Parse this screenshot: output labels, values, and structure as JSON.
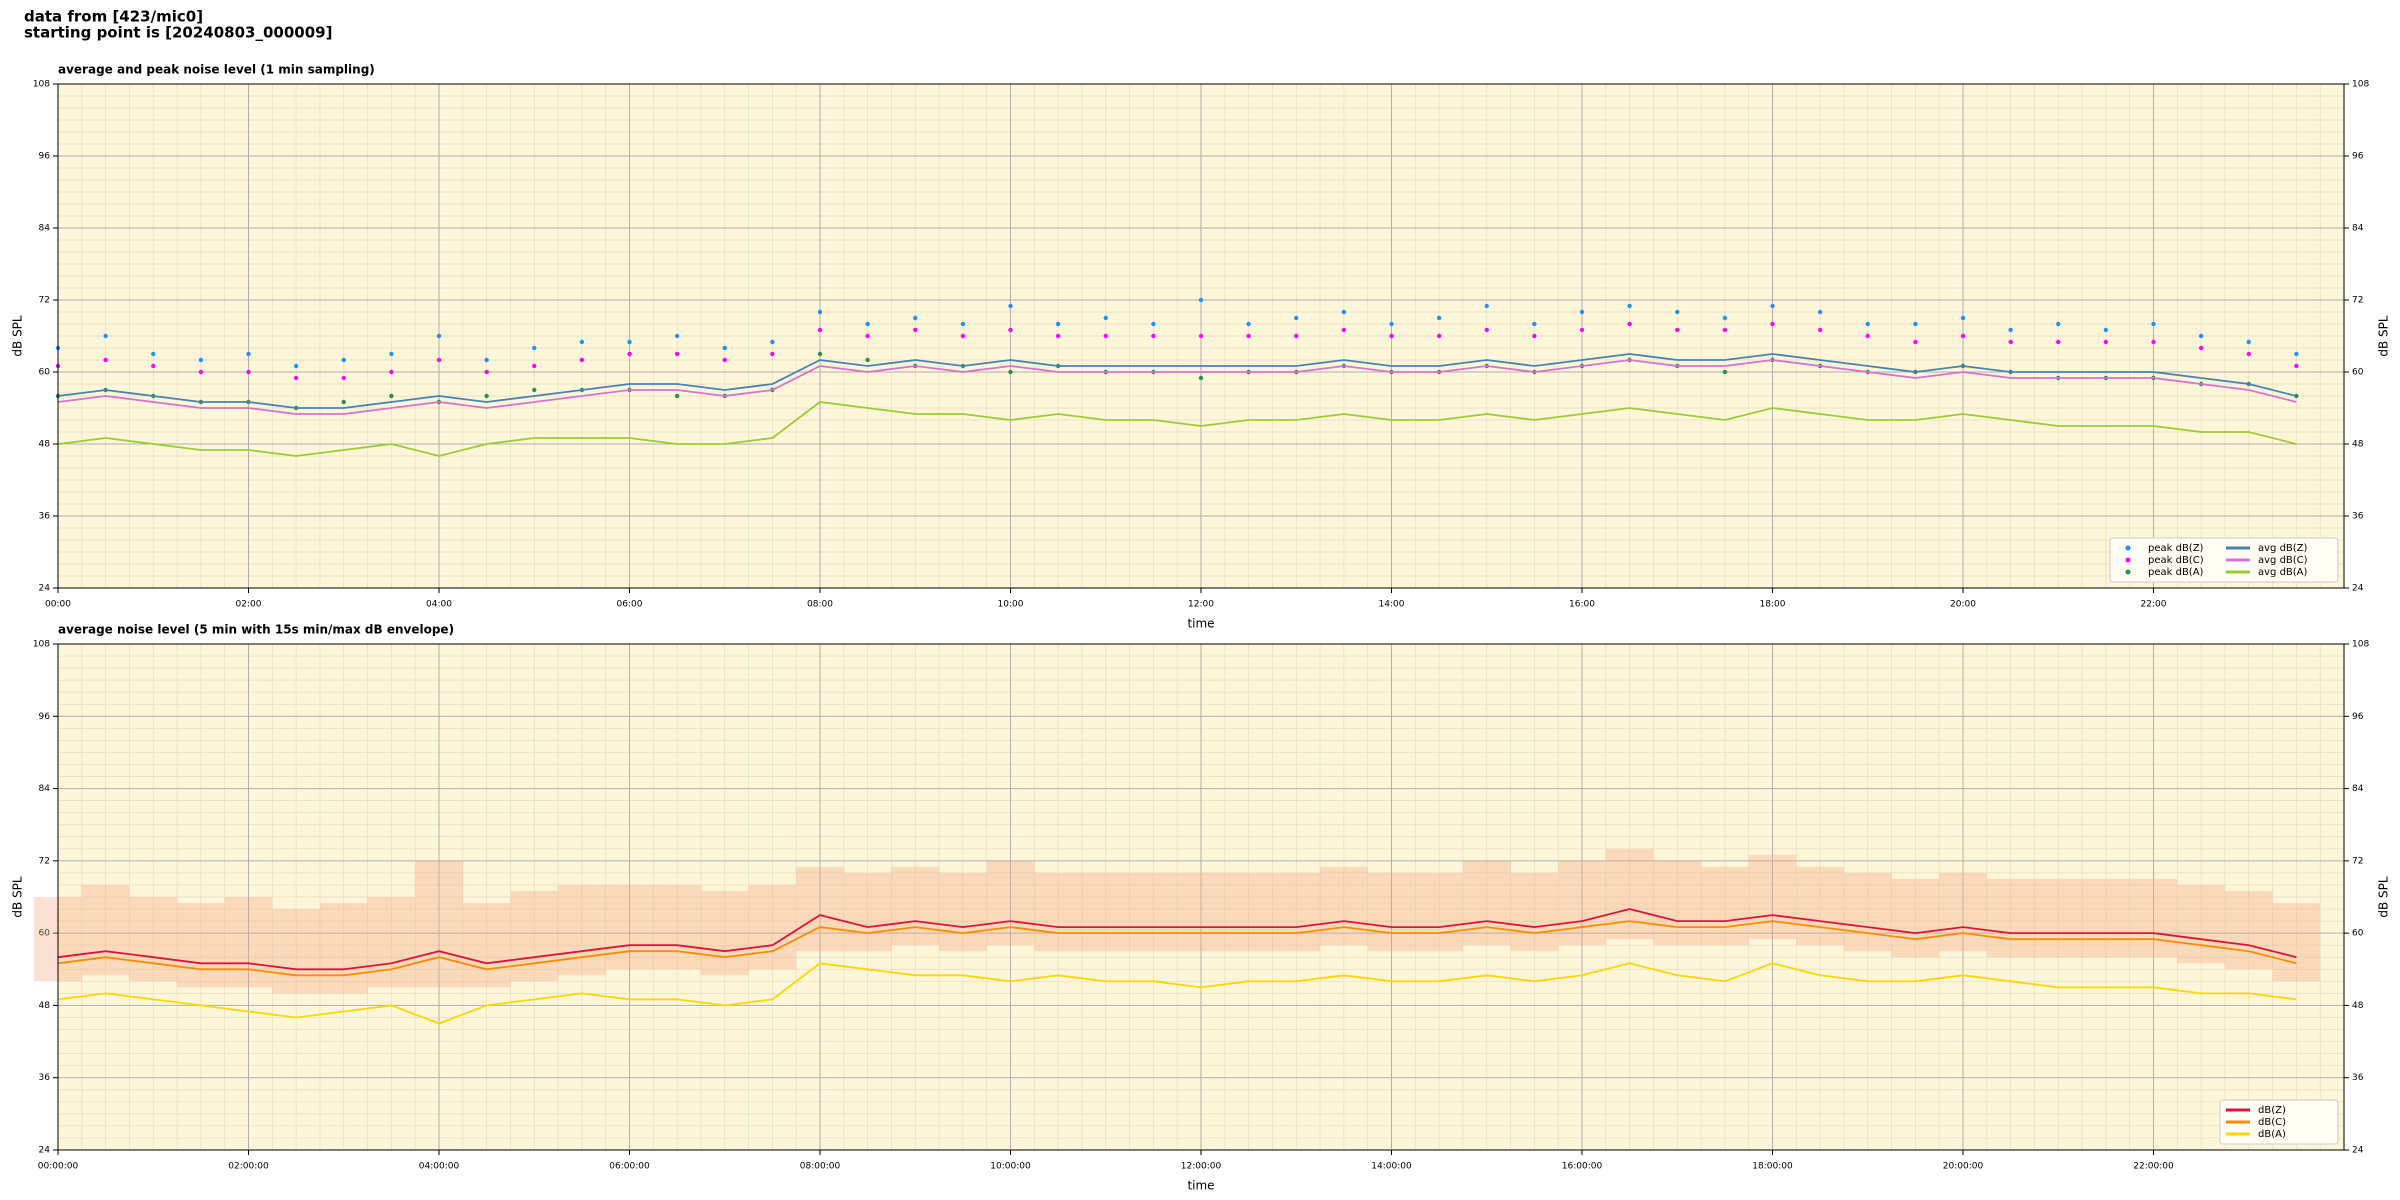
{
  "header": [
    "data from [423/mic0]",
    "starting point is [20240803_000009]"
  ],
  "chart_data": [
    {
      "type": "line",
      "title": "average and peak noise level (1 min sampling)",
      "xlabel": "time",
      "ylabel": "dB SPL",
      "xlim": [
        0,
        24
      ],
      "ylim": [
        24,
        108
      ],
      "yticks": [
        24,
        36,
        48,
        60,
        72,
        84,
        96,
        108
      ],
      "xticks": [
        {
          "value": 0,
          "label": "00:00"
        },
        {
          "value": 2,
          "label": "02:00"
        },
        {
          "value": 4,
          "label": "04:00"
        },
        {
          "value": 6,
          "label": "06:00"
        },
        {
          "value": 8,
          "label": "08:00"
        },
        {
          "value": 10,
          "label": "10:00"
        },
        {
          "value": 12,
          "label": "12:00"
        },
        {
          "value": 14,
          "label": "14:00"
        },
        {
          "value": 16,
          "label": "16:00"
        },
        {
          "value": 18,
          "label": "18:00"
        },
        {
          "value": 20,
          "label": "20:00"
        },
        {
          "value": 22,
          "label": "22:00"
        }
      ],
      "grid": true,
      "legend": "lower right",
      "legend_columns": 2,
      "x": [
        0,
        0.5,
        1,
        1.5,
        2,
        2.5,
        3,
        3.5,
        4,
        4.5,
        5,
        5.5,
        6,
        6.5,
        7,
        7.5,
        8,
        8.5,
        9,
        9.5,
        10,
        10.5,
        11,
        11.5,
        12,
        12.5,
        13,
        13.5,
        14,
        14.5,
        15,
        15.5,
        16,
        16.5,
        17,
        17.5,
        18,
        18.5,
        19,
        19.5,
        20,
        20.5,
        21,
        21.5,
        22,
        22.5,
        23,
        23.5
      ],
      "series": [
        {
          "name": "peak dB(Z)",
          "color": "#1e90ff",
          "mode": "markers",
          "values": [
            64,
            66,
            63,
            62,
            63,
            61,
            62,
            63,
            66,
            62,
            64,
            65,
            65,
            66,
            64,
            65,
            70,
            68,
            69,
            68,
            71,
            68,
            69,
            68,
            72,
            68,
            69,
            70,
            68,
            69,
            71,
            68,
            70,
            71,
            70,
            69,
            71,
            70,
            68,
            68,
            69,
            67,
            68,
            67,
            68,
            66,
            65,
            63
          ]
        },
        {
          "name": "peak dB(C)",
          "color": "#ff00ff",
          "mode": "markers",
          "values": [
            61,
            62,
            61,
            60,
            60,
            59,
            59,
            60,
            62,
            60,
            61,
            62,
            63,
            63,
            62,
            63,
            67,
            66,
            67,
            66,
            67,
            66,
            66,
            66,
            66,
            66,
            66,
            67,
            66,
            66,
            67,
            66,
            67,
            68,
            67,
            67,
            68,
            67,
            66,
            65,
            66,
            65,
            65,
            65,
            65,
            64,
            63,
            61
          ]
        },
        {
          "name": "peak dB(A)",
          "color": "#2e8b57",
          "mode": "markers",
          "values": [
            56,
            57,
            56,
            55,
            55,
            54,
            55,
            56,
            55,
            56,
            57,
            57,
            57,
            56,
            56,
            57,
            63,
            62,
            61,
            61,
            60,
            61,
            60,
            60,
            59,
            60,
            60,
            61,
            60,
            60,
            61,
            60,
            61,
            62,
            61,
            60,
            62,
            61,
            60,
            60,
            61,
            60,
            59,
            59,
            59,
            58,
            58,
            56
          ]
        },
        {
          "name": "avg dB(Z)",
          "color": "#4682b4",
          "mode": "line",
          "values": [
            56,
            57,
            56,
            55,
            55,
            54,
            54,
            55,
            56,
            55,
            56,
            57,
            58,
            58,
            57,
            58,
            62,
            61,
            62,
            61,
            62,
            61,
            61,
            61,
            61,
            61,
            61,
            62,
            61,
            61,
            62,
            61,
            62,
            63,
            62,
            62,
            63,
            62,
            61,
            60,
            61,
            60,
            60,
            60,
            60,
            59,
            58,
            56
          ]
        },
        {
          "name": "avg dB(C)",
          "color": "#da70d6",
          "mode": "line",
          "values": [
            55,
            56,
            55,
            54,
            54,
            53,
            53,
            54,
            55,
            54,
            55,
            56,
            57,
            57,
            56,
            57,
            61,
            60,
            61,
            60,
            61,
            60,
            60,
            60,
            60,
            60,
            60,
            61,
            60,
            60,
            61,
            60,
            61,
            62,
            61,
            61,
            62,
            61,
            60,
            59,
            60,
            59,
            59,
            59,
            59,
            58,
            57,
            55
          ]
        },
        {
          "name": "avg dB(A)",
          "color": "#9acd32",
          "mode": "line",
          "values": [
            48,
            49,
            48,
            47,
            47,
            46,
            47,
            48,
            46,
            48,
            49,
            49,
            49,
            48,
            48,
            49,
            55,
            54,
            53,
            53,
            52,
            53,
            52,
            52,
            51,
            52,
            52,
            53,
            52,
            52,
            53,
            52,
            53,
            54,
            53,
            52,
            54,
            53,
            52,
            52,
            53,
            52,
            51,
            51,
            51,
            50,
            50,
            48
          ]
        }
      ]
    },
    {
      "type": "line",
      "title": "average noise level (5 min with 15s min/max dB envelope)",
      "xlabel": "time",
      "ylabel": "dB SPL",
      "xlim": [
        0,
        24
      ],
      "ylim": [
        24,
        108
      ],
      "yticks": [
        24,
        36,
        48,
        60,
        72,
        84,
        96,
        108
      ],
      "xticks": [
        {
          "value": 0,
          "label": "00:00:00"
        },
        {
          "value": 2,
          "label": "02:00:00"
        },
        {
          "value": 4,
          "label": "04:00:00"
        },
        {
          "value": 6,
          "label": "06:00:00"
        },
        {
          "value": 8,
          "label": "08:00:00"
        },
        {
          "value": 10,
          "label": "10:00:00"
        },
        {
          "value": 12,
          "label": "12:00:00"
        },
        {
          "value": 14,
          "label": "14:00:00"
        },
        {
          "value": 16,
          "label": "16:00:00"
        },
        {
          "value": 18,
          "label": "18:00:00"
        },
        {
          "value": 20,
          "label": "20:00:00"
        },
        {
          "value": 22,
          "label": "22:00:00"
        }
      ],
      "grid": true,
      "legend": "lower right",
      "legend_columns": 1,
      "x": [
        0,
        0.5,
        1,
        1.5,
        2,
        2.5,
        3,
        3.5,
        4,
        4.5,
        5,
        5.5,
        6,
        6.5,
        7,
        7.5,
        8,
        8.5,
        9,
        9.5,
        10,
        10.5,
        11,
        11.5,
        12,
        12.5,
        13,
        13.5,
        14,
        14.5,
        15,
        15.5,
        16,
        16.5,
        17,
        17.5,
        18,
        18.5,
        19,
        19.5,
        20,
        20.5,
        21,
        21.5,
        22,
        22.5,
        23,
        23.5
      ],
      "envelope": {
        "color": "#f4a582",
        "low": [
          52,
          53,
          52,
          51,
          51,
          50,
          50,
          51,
          51,
          51,
          52,
          53,
          54,
          54,
          53,
          54,
          57,
          57,
          58,
          57,
          58,
          57,
          57,
          57,
          57,
          57,
          57,
          58,
          57,
          57,
          58,
          57,
          58,
          59,
          58,
          58,
          59,
          58,
          57,
          56,
          57,
          56,
          56,
          56,
          56,
          55,
          54,
          52
        ],
        "high": [
          66,
          68,
          66,
          65,
          66,
          64,
          65,
          66,
          72,
          65,
          67,
          68,
          68,
          68,
          67,
          68,
          71,
          70,
          71,
          70,
          72,
          70,
          70,
          70,
          70,
          70,
          70,
          71,
          70,
          70,
          72,
          70,
          72,
          74,
          72,
          71,
          73,
          71,
          70,
          69,
          70,
          69,
          69,
          69,
          69,
          68,
          67,
          65
        ]
      },
      "series": [
        {
          "name": "dB(Z)",
          "color": "#dc143c",
          "mode": "line",
          "values": [
            56,
            57,
            56,
            55,
            55,
            54,
            54,
            55,
            57,
            55,
            56,
            57,
            58,
            58,
            57,
            58,
            63,
            61,
            62,
            61,
            62,
            61,
            61,
            61,
            61,
            61,
            61,
            62,
            61,
            61,
            62,
            61,
            62,
            64,
            62,
            62,
            63,
            62,
            61,
            60,
            61,
            60,
            60,
            60,
            60,
            59,
            58,
            56
          ]
        },
        {
          "name": "dB(C)",
          "color": "#ff8c00",
          "mode": "line",
          "values": [
            55,
            56,
            55,
            54,
            54,
            53,
            53,
            54,
            56,
            54,
            55,
            56,
            57,
            57,
            56,
            57,
            61,
            60,
            61,
            60,
            61,
            60,
            60,
            60,
            60,
            60,
            60,
            61,
            60,
            60,
            61,
            60,
            61,
            62,
            61,
            61,
            62,
            61,
            60,
            59,
            60,
            59,
            59,
            59,
            59,
            58,
            57,
            55
          ]
        },
        {
          "name": "dB(A)",
          "color": "#ffd700",
          "mode": "line",
          "values": [
            49,
            50,
            49,
            48,
            47,
            46,
            47,
            48,
            45,
            48,
            49,
            50,
            49,
            49,
            48,
            49,
            55,
            54,
            53,
            53,
            52,
            53,
            52,
            52,
            51,
            52,
            52,
            53,
            52,
            52,
            53,
            52,
            53,
            55,
            53,
            52,
            55,
            53,
            52,
            52,
            53,
            52,
            51,
            51,
            51,
            50,
            50,
            49
          ]
        }
      ]
    }
  ]
}
